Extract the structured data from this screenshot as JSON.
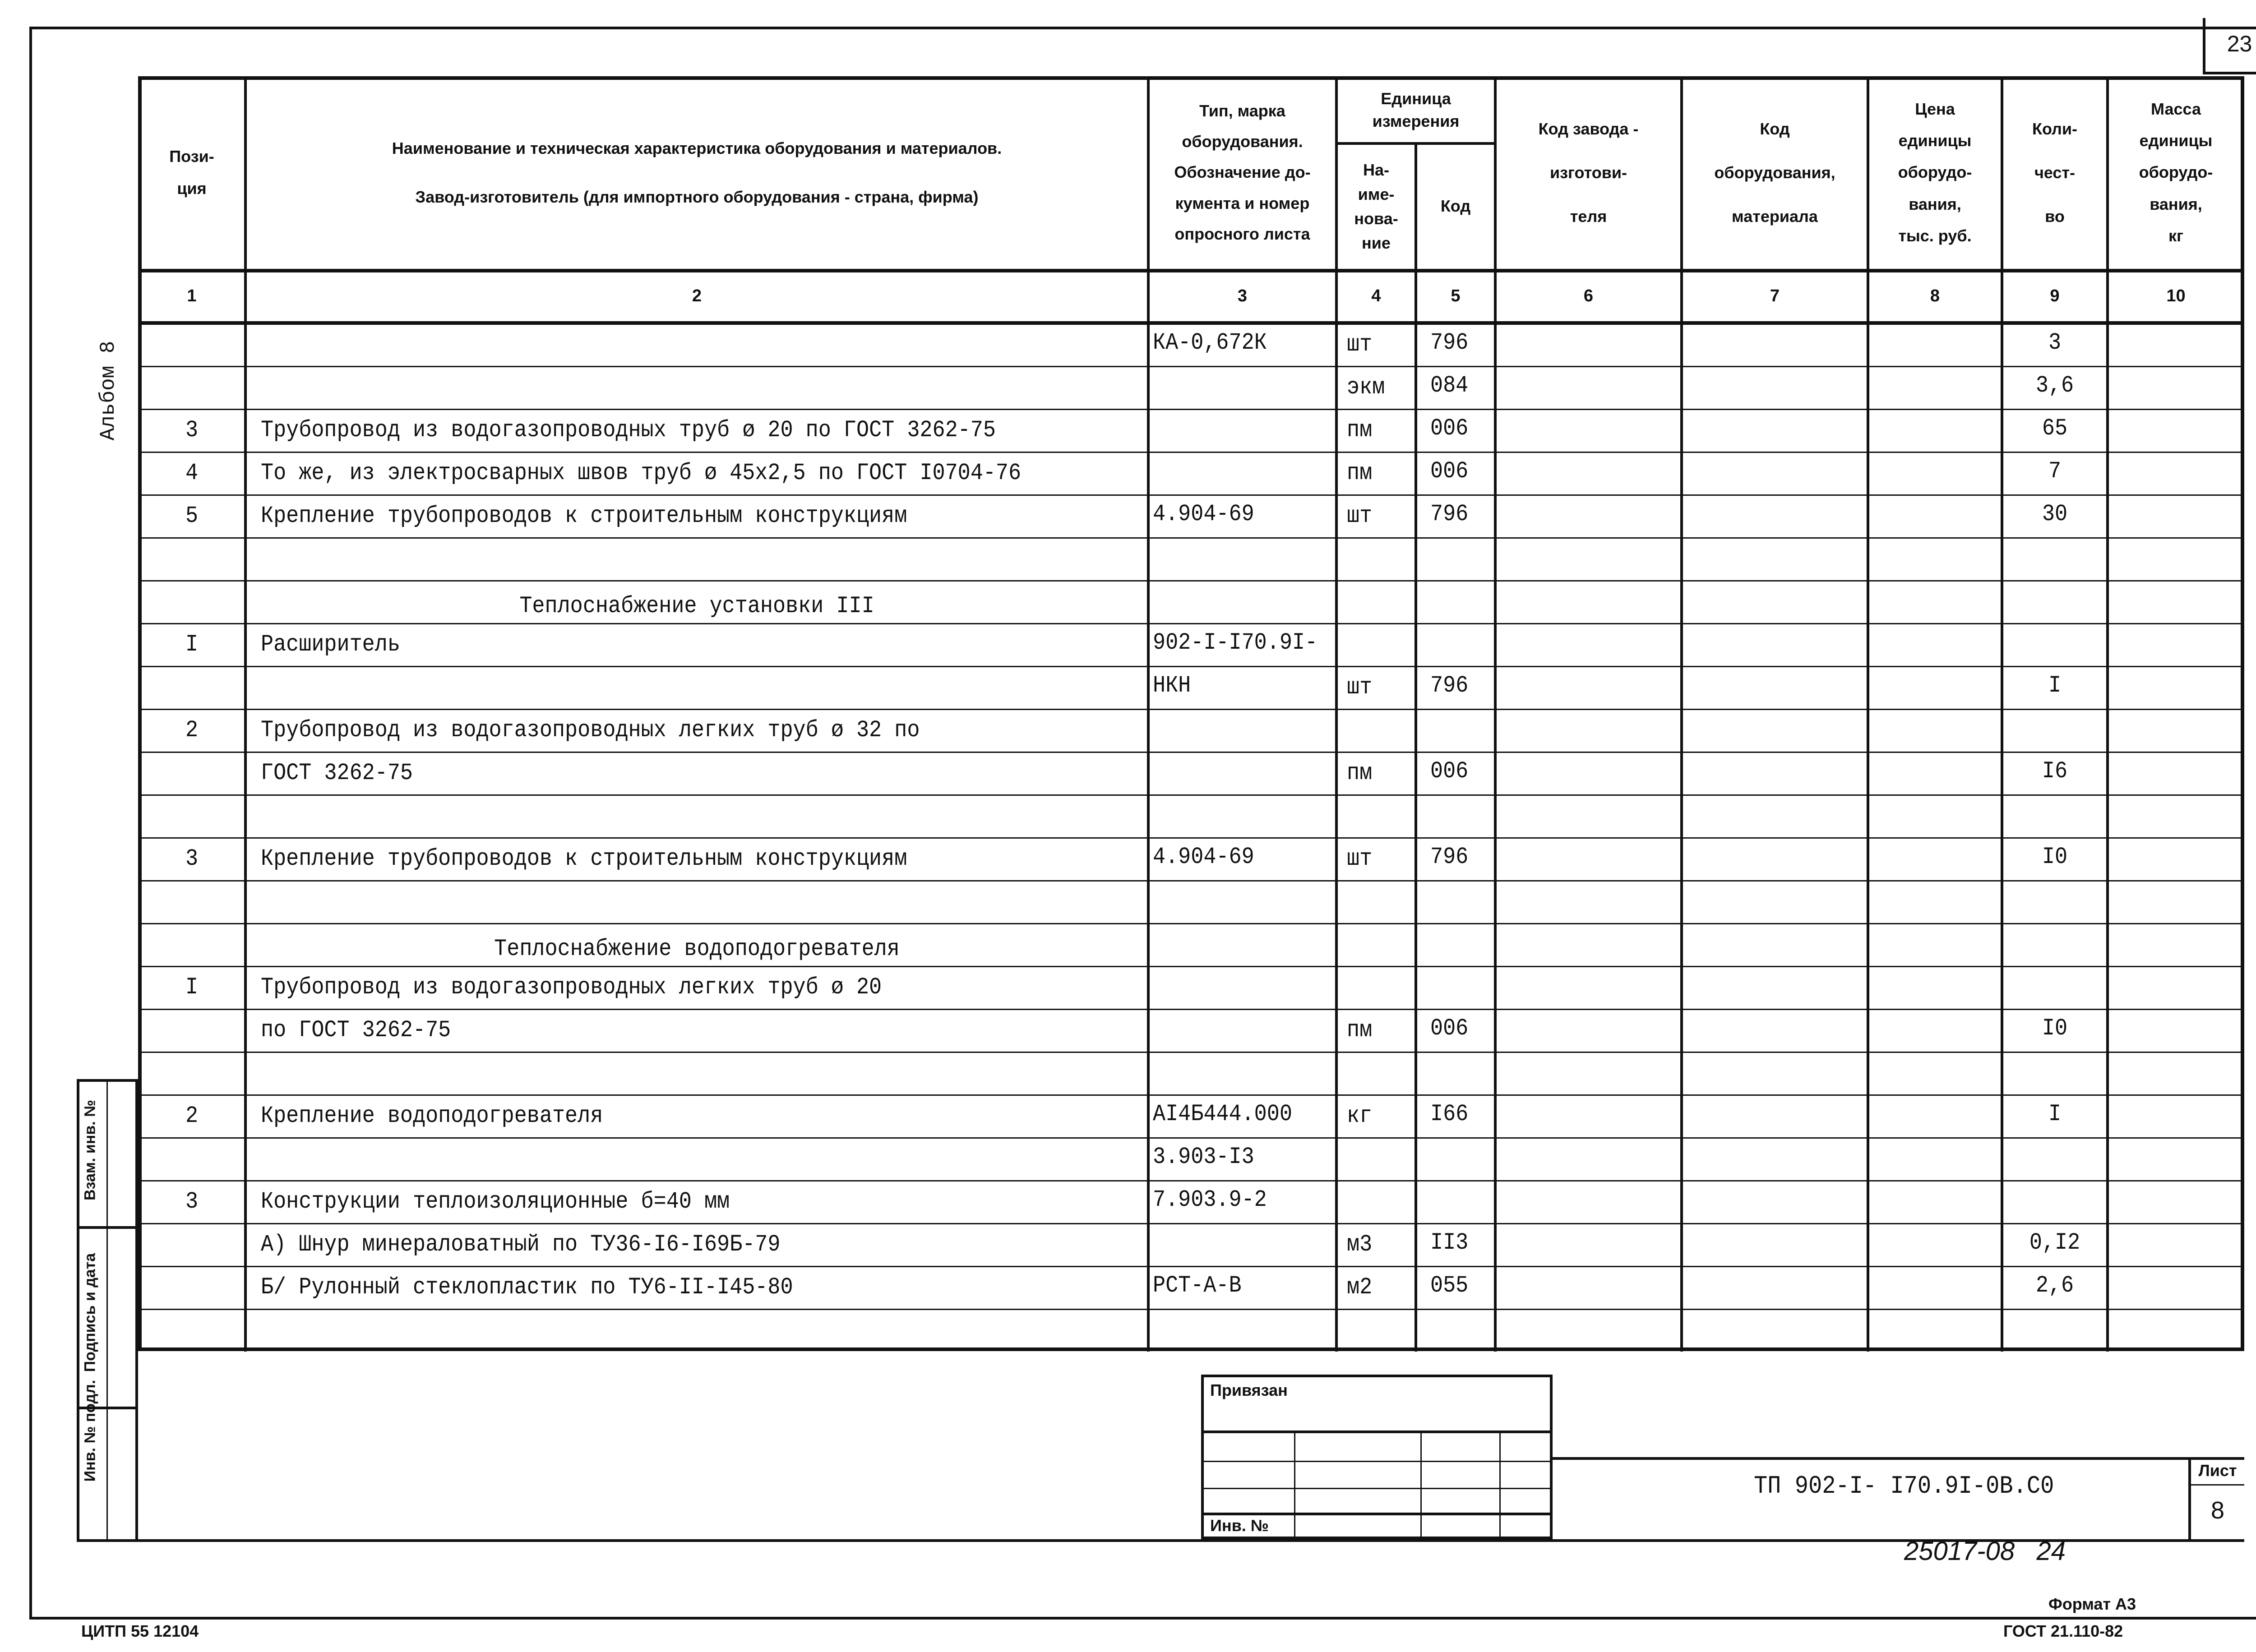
{
  "page_number": "23",
  "album_label": "Альбом 8",
  "header": {
    "col1": [
      "Пози-",
      "ция"
    ],
    "col2": [
      "Наименование и техническая характеристика оборудования и материалов.",
      "Завод-изготовитель (для импортного оборудования - страна, фирма)"
    ],
    "col3": [
      "Тип, марка",
      "оборудования.",
      "Обозначение до-",
      "кумента и номер",
      "опросного листа"
    ],
    "unit_group": [
      "Единица",
      "измерения"
    ],
    "col4": [
      "На-",
      "име-",
      "нова-",
      "ние"
    ],
    "col5": [
      "Код"
    ],
    "col6": [
      "Код завода -",
      "изготови-",
      "теля"
    ],
    "col7": [
      "Код",
      "оборудования,",
      "материала"
    ],
    "col8": [
      "Цена",
      "единицы",
      "оборудо-",
      "вания,",
      "тыс. руб."
    ],
    "col9": [
      "Коли-",
      "чест-",
      "во"
    ],
    "col10": [
      "Масса",
      "единицы",
      "оборудо-",
      "вания,",
      "кг"
    ]
  },
  "column_numbers": [
    "1",
    "2",
    "3",
    "4",
    "5",
    "6",
    "7",
    "8",
    "9",
    "10"
  ],
  "rows": [
    {
      "pos": "",
      "name": "",
      "doc": "КА-0,672К",
      "unit": "шт",
      "code": "796",
      "qty": "3"
    },
    {
      "pos": "",
      "name": "",
      "doc": "",
      "unit": "экм",
      "code": "084",
      "qty": "3,6"
    },
    {
      "pos": "3",
      "name": "Трубопровод из водогазопроводных труб ø 20 по ГОСТ 3262-75",
      "doc": "",
      "unit": "пм",
      "code": "006",
      "qty": "65"
    },
    {
      "pos": "4",
      "name": "То же, из электросварных швов труб ø 45х2,5 по ГОСТ I0704-76",
      "doc": "",
      "unit": "пм",
      "code": "006",
      "qty": "7"
    },
    {
      "pos": "5",
      "name": "Крепление трубопроводов к строительным конструкциям",
      "doc": "4.904-69",
      "unit": "шт",
      "code": "796",
      "qty": "30"
    },
    {
      "pos": "",
      "name": "",
      "doc": "",
      "unit": "",
      "code": "",
      "qty": ""
    },
    {
      "pos": "",
      "heading": "Теплоснабжение установки III",
      "doc": "",
      "unit": "",
      "code": "",
      "qty": ""
    },
    {
      "pos": "I",
      "name": "Расширитель",
      "doc": "902-I-I70.9I-",
      "unit": "",
      "code": "",
      "qty": ""
    },
    {
      "pos": "",
      "name": "",
      "doc": "НКН",
      "unit": "шт",
      "code": "796",
      "qty": "I"
    },
    {
      "pos": "2",
      "name": "Трубопровод из водогазопроводных легких труб ø 32 по",
      "doc": "",
      "unit": "",
      "code": "",
      "qty": ""
    },
    {
      "pos": "",
      "name": "ГОСТ 3262-75",
      "doc": "",
      "unit": "пм",
      "code": "006",
      "qty": "I6"
    },
    {
      "pos": "",
      "name": "",
      "doc": "",
      "unit": "",
      "code": "",
      "qty": ""
    },
    {
      "pos": "3",
      "name": "Крепление трубопроводов к строительным конструкциям",
      "doc": "4.904-69",
      "unit": "шт",
      "code": "796",
      "qty": "I0"
    },
    {
      "pos": "",
      "name": "",
      "doc": "",
      "unit": "",
      "code": "",
      "qty": ""
    },
    {
      "pos": "",
      "heading": "Теплоснабжение водоподогревателя",
      "doc": "",
      "unit": "",
      "code": "",
      "qty": ""
    },
    {
      "pos": "I",
      "name": "Трубопровод из водогазопроводных легких труб ø 20",
      "doc": "",
      "unit": "",
      "code": "",
      "qty": ""
    },
    {
      "pos": "",
      "name": "по ГОСТ 3262-75",
      "doc": "",
      "unit": "пм",
      "code": "006",
      "qty": "I0"
    },
    {
      "pos": "",
      "name": "",
      "doc": "",
      "unit": "",
      "code": "",
      "qty": ""
    },
    {
      "pos": "2",
      "name": "Крепление водоподогревателя",
      "doc": "АI4Б444.000",
      "unit": "кг",
      "code": "I66",
      "qty": "I"
    },
    {
      "pos": "",
      "name": "",
      "doc": "3.903-I3",
      "unit": "",
      "code": "",
      "qty": ""
    },
    {
      "pos": "3",
      "name": "Конструкции теплоизоляционные б=40 мм",
      "doc": "7.903.9-2",
      "unit": "",
      "code": "",
      "qty": ""
    },
    {
      "pos": "",
      "name": "А) Шнур минераловатный по ТУ36-I6-I69Б-79",
      "doc": "",
      "unit": "м3",
      "code": "II3",
      "qty": "0,I2"
    },
    {
      "pos": "",
      "name": "Б/ Рулонный стеклопластик по ТУ6-II-I45-80",
      "doc": "РСТ-А-В",
      "unit": "м2",
      "code": "055",
      "qty": "2,6"
    },
    {
      "pos": "",
      "name": "",
      "doc": "",
      "unit": "",
      "code": "",
      "qty": ""
    }
  ],
  "stamp": {
    "bound_label": "Привязан",
    "inv_label": "Инв. №",
    "doc_code": "ТП 902-I- I70.9I-0В.С0",
    "sheet_label": "Лист",
    "sheet_number": "8"
  },
  "side_stamp": [
    "Инв. № подл.",
    "Подпись и дата",
    "Взам. инв. №"
  ],
  "handwritten": "25017-08   24",
  "format_label": "Формат А3",
  "footer_left": "ЦИТП 55 12104",
  "footer_right": "ГОСТ 21.110-82"
}
